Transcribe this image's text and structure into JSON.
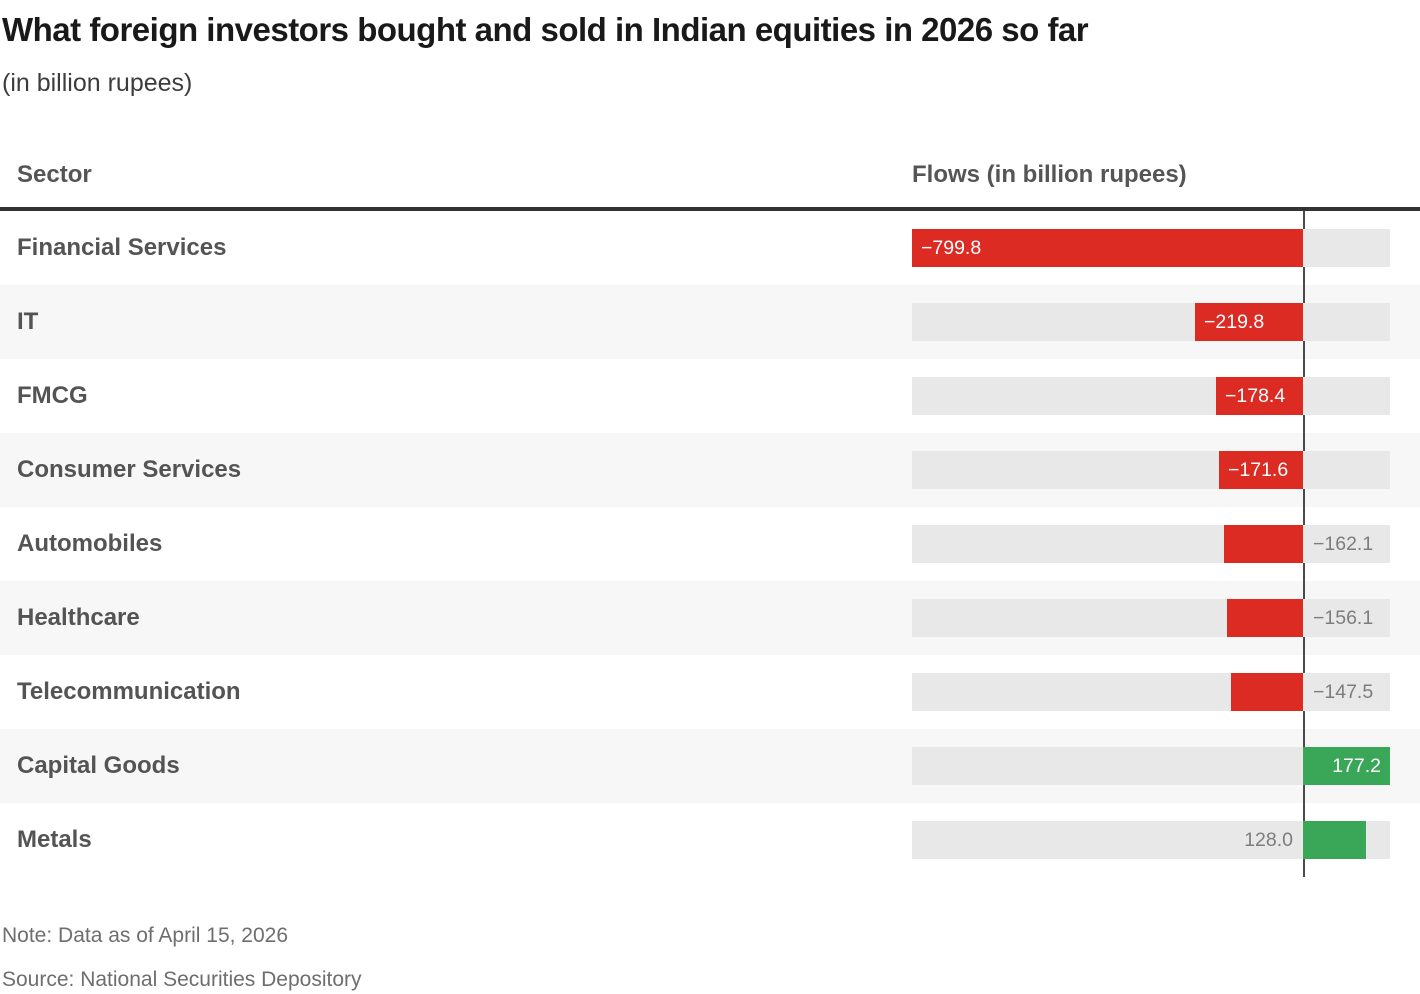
{
  "title": "What foreign investors bought and sold in Indian equities in 2026 so far",
  "subtitle": "(in billion rupees)",
  "table_header": {
    "sector": "Sector",
    "flows": "Flows (in billion rupees)"
  },
  "chart_data": {
    "type": "bar",
    "orientation": "horizontal",
    "title": "What foreign investors bought and sold in Indian equities in 2026 so far",
    "unit": "billion rupees",
    "categories": [
      "Financial Services",
      "IT",
      "FMCG",
      "Consumer Services",
      "Automobiles",
      "Healthcare",
      "Telecommunication",
      "Capital Goods",
      "Metals"
    ],
    "values": [
      -799.8,
      -219.8,
      -178.4,
      -171.6,
      -162.1,
      -156.1,
      -147.5,
      177.2,
      128.0
    ],
    "value_labels": [
      "−799.8",
      "−219.8",
      "−178.4",
      "−171.6",
      "−162.1",
      "−156.1",
      "−147.5",
      "177.2",
      "128.0"
    ],
    "label_placement": [
      "inside",
      "inside",
      "inside",
      "inside",
      "outside",
      "outside",
      "outside",
      "inside",
      "outside"
    ],
    "axis_range": [
      -799.8,
      177.2
    ],
    "legend": "none",
    "grid": "zero-line-only"
  },
  "note": "Note: Data as of April 15, 2026",
  "source": "Source: National Securities Depository",
  "colors": {
    "negative_bar": "#dc2b23",
    "positive_bar": "#3aa758",
    "bar_track": "#e8e8e8",
    "row_stripe": "#f7f7f7",
    "zero_line": "#4a4a4a",
    "header_rule": "#333333",
    "inside_label": "#ffffff",
    "outside_label": "#7d7d7d"
  }
}
